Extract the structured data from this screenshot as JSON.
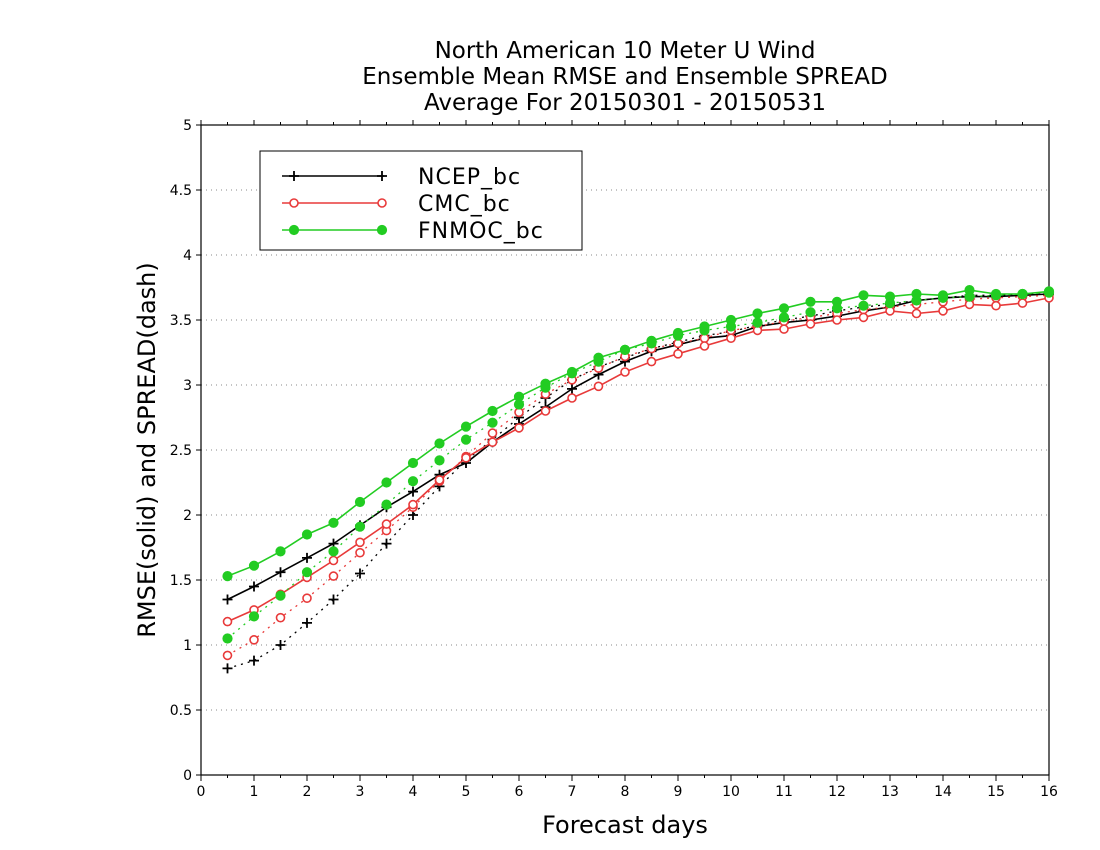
{
  "chart_data": {
    "type": "line",
    "title_lines": [
      "North American 10 Meter U Wind",
      "Ensemble Mean RMSE and Ensemble SPREAD",
      "Average For 20150301 - 20150531"
    ],
    "xlabel": "Forecast days",
    "ylabel": "RMSE(solid) and SPREAD(dash)",
    "xlim": [
      0,
      16
    ],
    "ylim": [
      0,
      5
    ],
    "xticks": [
      "0",
      "1",
      "2",
      "3",
      "4",
      "5",
      "6",
      "7",
      "8",
      "9",
      "10",
      "11",
      "12",
      "13",
      "14",
      "15",
      "16"
    ],
    "yticks": [
      "0",
      "0.5",
      "1",
      "1.5",
      "2",
      "2.5",
      "3",
      "3.5",
      "4",
      "4.5",
      "5"
    ],
    "grid": "horizontal dotted",
    "legend_position": "top-left",
    "x": [
      0.5,
      1,
      1.5,
      2,
      2.5,
      3,
      3.5,
      4,
      4.5,
      5,
      5.5,
      6,
      6.5,
      7,
      7.5,
      8,
      8.5,
      9,
      9.5,
      10,
      10.5,
      11,
      11.5,
      12,
      12.5,
      13,
      13.5,
      14,
      14.5,
      15,
      15.5,
      16
    ],
    "series": [
      {
        "name": "NCEP_bc",
        "color": "#000000",
        "marker": "plus",
        "rmse": [
          1.35,
          1.45,
          1.56,
          1.67,
          1.78,
          1.92,
          2.06,
          2.18,
          2.31,
          2.4,
          2.56,
          2.7,
          2.83,
          2.97,
          3.08,
          3.18,
          3.26,
          3.31,
          3.36,
          3.38,
          3.45,
          3.48,
          3.5,
          3.53,
          3.57,
          3.6,
          3.65,
          3.67,
          3.68,
          3.68,
          3.69,
          3.7
        ],
        "spread": [
          0.82,
          0.88,
          1.0,
          1.17,
          1.35,
          1.55,
          1.78,
          2.0,
          2.22,
          2.42,
          2.58,
          2.75,
          2.9,
          3.04,
          3.14,
          3.21,
          3.28,
          3.33,
          3.38,
          3.41,
          3.46,
          3.5,
          3.53,
          3.57,
          3.6,
          3.62,
          3.65,
          3.67,
          3.69,
          3.69,
          3.7,
          3.7
        ]
      },
      {
        "name": "CMC_bc",
        "color": "#e83a3a",
        "marker": "open-circle",
        "rmse": [
          1.18,
          1.27,
          1.39,
          1.52,
          1.65,
          1.79,
          1.93,
          2.08,
          2.27,
          2.44,
          2.56,
          2.67,
          2.8,
          2.9,
          2.99,
          3.1,
          3.18,
          3.24,
          3.3,
          3.36,
          3.42,
          3.43,
          3.47,
          3.5,
          3.52,
          3.57,
          3.55,
          3.57,
          3.62,
          3.61,
          3.63,
          3.67
        ],
        "spread": [
          0.92,
          1.04,
          1.21,
          1.36,
          1.53,
          1.71,
          1.88,
          2.06,
          2.26,
          2.45,
          2.63,
          2.79,
          2.93,
          3.04,
          3.13,
          3.22,
          3.28,
          3.32,
          3.36,
          3.42,
          3.45,
          3.49,
          3.52,
          3.55,
          3.58,
          3.6,
          3.62,
          3.64,
          3.66,
          3.67,
          3.68,
          3.69
        ]
      },
      {
        "name": "FNMOC_bc",
        "color": "#22cc22",
        "marker": "filled-circle",
        "rmse": [
          1.53,
          1.61,
          1.72,
          1.85,
          1.94,
          2.1,
          2.25,
          2.4,
          2.55,
          2.68,
          2.8,
          2.91,
          3.01,
          3.1,
          3.21,
          3.27,
          3.34,
          3.4,
          3.45,
          3.5,
          3.55,
          3.59,
          3.64,
          3.64,
          3.69,
          3.68,
          3.7,
          3.69,
          3.73,
          3.7,
          3.7,
          3.72
        ],
        "spread": [
          1.05,
          1.22,
          1.38,
          1.56,
          1.72,
          1.91,
          2.08,
          2.26,
          2.42,
          2.58,
          2.71,
          2.85,
          2.98,
          3.09,
          3.18,
          3.27,
          3.32,
          3.38,
          3.42,
          3.45,
          3.48,
          3.52,
          3.56,
          3.59,
          3.61,
          3.63,
          3.65,
          3.67,
          3.68,
          3.69,
          3.7,
          3.71
        ]
      }
    ]
  }
}
